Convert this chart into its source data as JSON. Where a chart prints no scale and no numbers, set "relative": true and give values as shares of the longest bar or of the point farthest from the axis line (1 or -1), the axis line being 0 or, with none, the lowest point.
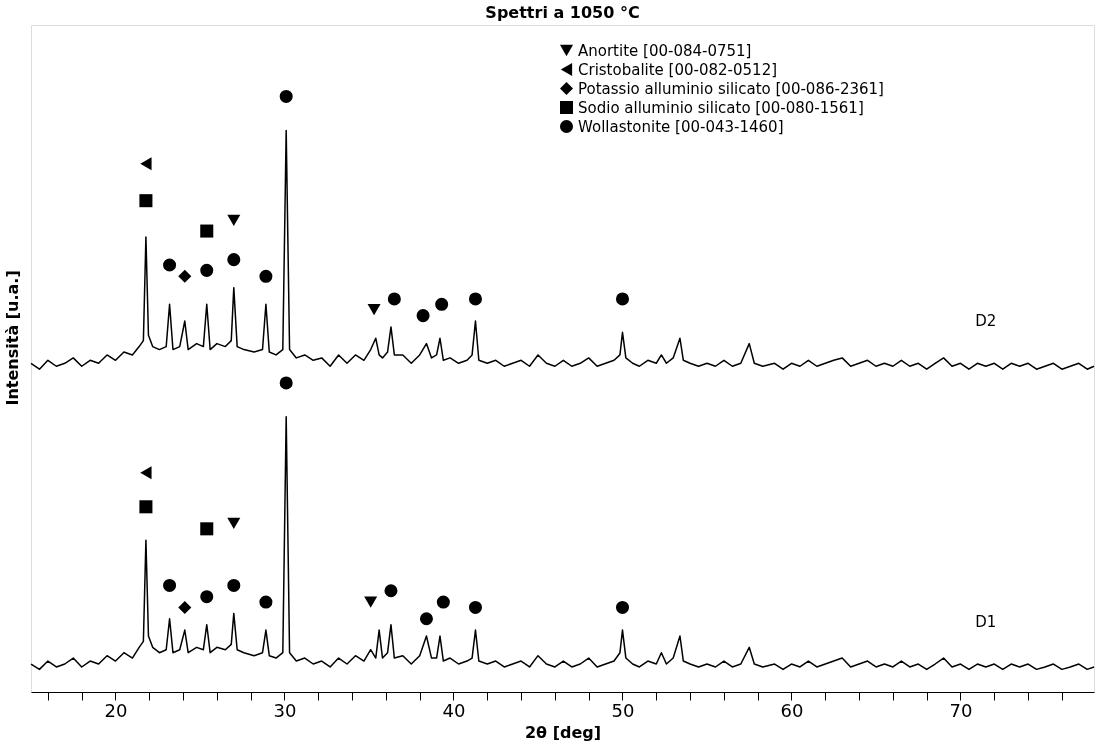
{
  "chart_data": {
    "type": "line",
    "title": "Spettri a 1050 °C",
    "xlabel": "2θ [deg]",
    "ylabel": "Intensità [u.a.]",
    "relative": true,
    "grid": false,
    "legend": "top",
    "tick_labels": "x",
    "xlim": [
      15,
      77.9
    ],
    "xticks": [
      {
        "value": 16,
        "label": null
      },
      {
        "value": 18,
        "label": null
      },
      20,
      {
        "value": 22,
        "label": null
      },
      {
        "value": 24,
        "label": null
      },
      {
        "value": 26,
        "label": null
      },
      {
        "value": 28,
        "label": null
      },
      30,
      {
        "value": 32,
        "label": null
      },
      {
        "value": 34,
        "label": null
      },
      {
        "value": 36,
        "label": null
      },
      {
        "value": 38,
        "label": null
      },
      40,
      {
        "value": 42,
        "label": null
      },
      {
        "value": 44,
        "label": null
      },
      {
        "value": 46,
        "label": null
      },
      {
        "value": 48,
        "label": null
      },
      50,
      {
        "value": 52,
        "label": null
      },
      {
        "value": 54,
        "label": null
      },
      {
        "value": 56,
        "label": null
      },
      {
        "value": 58,
        "label": null
      },
      60,
      {
        "value": 62,
        "label": null
      },
      {
        "value": 64,
        "label": null
      },
      {
        "value": 66,
        "label": null
      },
      {
        "value": 68,
        "label": null
      },
      70,
      {
        "value": 72,
        "label": null
      },
      {
        "value": 74,
        "label": null
      },
      {
        "value": 76,
        "label": null
      }
    ],
    "x": [
      15,
      15.5,
      16,
      16.5,
      17,
      17.5,
      18,
      18.5,
      19,
      19.5,
      20,
      20.5,
      21,
      21.4,
      21.65,
      21.8,
      21.95,
      22.2,
      22.6,
      23.0,
      23.2,
      23.4,
      23.8,
      24.1,
      24.3,
      24.8,
      25.2,
      25.4,
      25.6,
      26.0,
      26.5,
      26.85,
      27.0,
      27.2,
      27.6,
      28.2,
      28.7,
      28.9,
      29.1,
      29.5,
      29.9,
      30.1,
      30.3,
      30.7,
      31.2,
      31.7,
      32.2,
      32.7,
      33.2,
      33.7,
      34.2,
      34.7,
      35.1,
      35.4,
      35.6,
      35.8,
      36.1,
      36.3,
      36.5,
      37,
      37.5,
      38.0,
      38.4,
      38.7,
      39.0,
      39.2,
      39.4,
      39.8,
      40.3,
      40.8,
      41.1,
      41.3,
      41.5,
      42,
      42.5,
      43,
      43.5,
      44,
      44.5,
      45,
      45.5,
      46,
      46.5,
      47,
      47.5,
      48,
      48.5,
      49,
      49.5,
      49.85,
      50.0,
      50.2,
      50.6,
      51,
      51.5,
      52,
      52.3,
      52.6,
      53.0,
      53.4,
      53.6,
      54,
      54.5,
      55,
      55.5,
      56,
      56.5,
      57,
      57.5,
      57.8,
      58.3,
      59,
      59.5,
      60,
      60.5,
      61,
      61.5,
      62,
      62.5,
      63,
      63.5,
      64,
      64.5,
      65,
      65.5,
      66,
      66.5,
      67,
      67.5,
      68,
      68.5,
      69,
      69.5,
      70,
      70.5,
      71,
      71.5,
      72,
      72.5,
      73,
      73.5,
      74,
      74.5,
      75,
      75.5,
      76,
      76.5,
      77,
      77.5,
      77.9
    ],
    "series": [
      {
        "name": "D1",
        "type": "line",
        "color": "#000000",
        "values": [
          0.047,
          0.038,
          0.052,
          0.042,
          0.047,
          0.057,
          0.042,
          0.052,
          0.047,
          0.061,
          0.052,
          0.066,
          0.057,
          0.075,
          0.085,
          0.255,
          0.094,
          0.075,
          0.066,
          0.071,
          0.123,
          0.066,
          0.071,
          0.104,
          0.066,
          0.075,
          0.071,
          0.113,
          0.066,
          0.075,
          0.071,
          0.08,
          0.132,
          0.071,
          0.066,
          0.061,
          0.066,
          0.104,
          0.061,
          0.057,
          0.066,
          0.462,
          0.066,
          0.052,
          0.057,
          0.047,
          0.052,
          0.042,
          0.057,
          0.047,
          0.061,
          0.052,
          0.071,
          0.057,
          0.104,
          0.057,
          0.066,
          0.113,
          0.057,
          0.061,
          0.047,
          0.061,
          0.094,
          0.057,
          0.057,
          0.094,
          0.052,
          0.057,
          0.047,
          0.052,
          0.057,
          0.104,
          0.052,
          0.047,
          0.052,
          0.042,
          0.047,
          0.052,
          0.042,
          0.061,
          0.047,
          0.042,
          0.052,
          0.042,
          0.047,
          0.057,
          0.042,
          0.047,
          0.052,
          0.066,
          0.104,
          0.057,
          0.047,
          0.042,
          0.052,
          0.047,
          0.066,
          0.047,
          0.057,
          0.094,
          0.052,
          0.047,
          0.042,
          0.047,
          0.042,
          0.052,
          0.042,
          0.047,
          0.075,
          0.047,
          0.042,
          0.047,
          0.038,
          0.047,
          0.042,
          0.052,
          0.042,
          0.047,
          0.052,
          0.057,
          0.042,
          0.047,
          0.052,
          0.042,
          0.047,
          0.042,
          0.052,
          0.042,
          0.047,
          0.038,
          0.047,
          0.057,
          0.042,
          0.047,
          0.038,
          0.047,
          0.042,
          0.047,
          0.038,
          0.047,
          0.042,
          0.047,
          0.038,
          0.042,
          0.047,
          0.038,
          0.042,
          0.047,
          0.038,
          0.042
        ]
      },
      {
        "name": "D2",
        "type": "line",
        "color": "#000000",
        "values": [
          0.552,
          0.542,
          0.557,
          0.547,
          0.552,
          0.561,
          0.547,
          0.557,
          0.552,
          0.566,
          0.557,
          0.571,
          0.566,
          0.58,
          0.59,
          0.764,
          0.599,
          0.58,
          0.575,
          0.58,
          0.651,
          0.575,
          0.58,
          0.623,
          0.575,
          0.585,
          0.58,
          0.651,
          0.575,
          0.585,
          0.58,
          0.59,
          0.679,
          0.58,
          0.575,
          0.571,
          0.575,
          0.651,
          0.571,
          0.566,
          0.575,
          0.943,
          0.575,
          0.561,
          0.566,
          0.557,
          0.561,
          0.547,
          0.566,
          0.552,
          0.566,
          0.557,
          0.575,
          0.594,
          0.566,
          0.561,
          0.571,
          0.613,
          0.566,
          0.566,
          0.552,
          0.566,
          0.585,
          0.561,
          0.566,
          0.594,
          0.557,
          0.561,
          0.552,
          0.557,
          0.566,
          0.623,
          0.557,
          0.552,
          0.557,
          0.547,
          0.552,
          0.557,
          0.547,
          0.566,
          0.552,
          0.547,
          0.557,
          0.547,
          0.552,
          0.561,
          0.547,
          0.552,
          0.557,
          0.566,
          0.604,
          0.561,
          0.552,
          0.547,
          0.557,
          0.552,
          0.566,
          0.552,
          0.561,
          0.594,
          0.557,
          0.552,
          0.547,
          0.552,
          0.547,
          0.557,
          0.547,
          0.552,
          0.585,
          0.552,
          0.547,
          0.552,
          0.542,
          0.552,
          0.547,
          0.557,
          0.547,
          0.552,
          0.557,
          0.561,
          0.547,
          0.552,
          0.557,
          0.547,
          0.552,
          0.547,
          0.557,
          0.547,
          0.552,
          0.542,
          0.552,
          0.561,
          0.547,
          0.552,
          0.542,
          0.552,
          0.547,
          0.552,
          0.542,
          0.552,
          0.547,
          0.552,
          0.542,
          0.547,
          0.552,
          0.542,
          0.547,
          0.552,
          0.542,
          0.547
        ]
      },
      {
        "name": "Anortite [00-084-0751]",
        "type": "scatter",
        "marker": "triangle-down",
        "color": "#000000",
        "x": [
          27.0,
          35.3,
          27.0,
          35.1
        ],
        "values": [
          0.792,
          0.642,
          0.283,
          0.151
        ]
      },
      {
        "name": "Cristobalite [00-082-0512]",
        "type": "scatter",
        "marker": "triangle-left",
        "color": "#000000",
        "x": [
          21.8,
          21.8
        ],
        "values": [
          0.887,
          0.368
        ]
      },
      {
        "name": "Potassio alluminio silicato [00-086-2361]",
        "type": "scatter",
        "marker": "diamond",
        "color": "#000000",
        "x": [
          24.1,
          24.1
        ],
        "values": [
          0.698,
          0.142
        ]
      },
      {
        "name": "Sodio alluminio silicato [00-080-1561]",
        "type": "scatter",
        "marker": "square",
        "color": "#000000",
        "x": [
          21.8,
          25.4,
          21.8,
          25.4
        ],
        "values": [
          0.825,
          0.774,
          0.311,
          0.274
        ]
      },
      {
        "name": "Wollastonite [00-043-1460]",
        "type": "scatter",
        "marker": "circle",
        "color": "#000000",
        "x": [
          23.2,
          25.4,
          27.0,
          28.9,
          30.1,
          36.5,
          38.2,
          39.3,
          41.3,
          50.0,
          23.2,
          25.4,
          27.0,
          28.9,
          30.1,
          36.3,
          38.4,
          39.4,
          41.3,
          50.0
        ],
        "values": [
          0.717,
          0.708,
          0.726,
          0.698,
          1,
          0.66,
          0.632,
          0.651,
          0.66,
          0.66,
          0.179,
          0.16,
          0.179,
          0.151,
          0.519,
          0.17,
          0.123,
          0.151,
          0.142,
          0.142
        ]
      }
    ]
  }
}
